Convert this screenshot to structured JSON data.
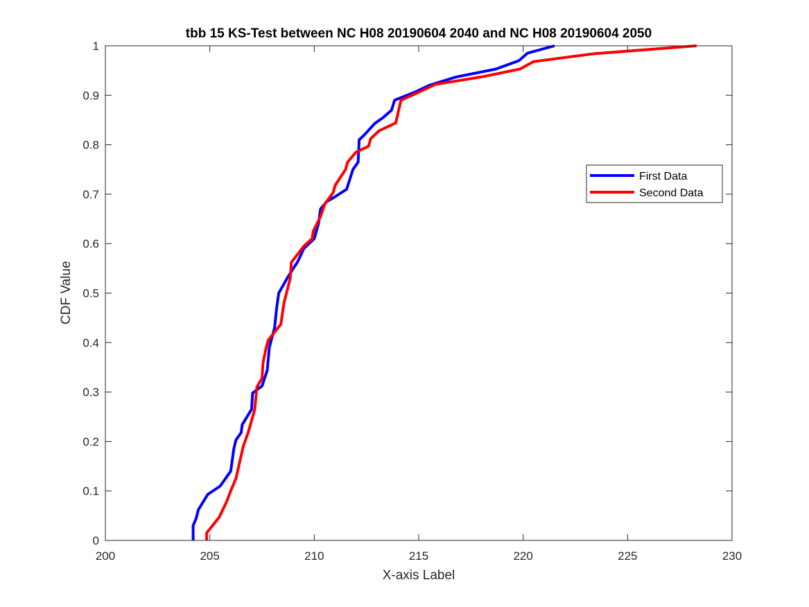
{
  "chart_data": {
    "type": "line",
    "title": "tbb 15 KS-Test between NC H08 20190604 2040 and NC H08 20190604 2050",
    "xlabel": "X-axis Label",
    "ylabel": "CDF Value",
    "xlim": [
      200,
      230
    ],
    "ylim": [
      0,
      1
    ],
    "xticks": [
      200,
      205,
      210,
      215,
      220,
      225,
      230
    ],
    "yticks": [
      0,
      0.1,
      0.2,
      0.3,
      0.4,
      0.5,
      0.6,
      0.7,
      0.8,
      0.9,
      1
    ],
    "x_tick_labels": [
      "200",
      "205",
      "210",
      "215",
      "220",
      "225",
      "230"
    ],
    "y_tick_labels": [
      "0",
      "0.1",
      "0.2",
      "0.3",
      "0.4",
      "0.5",
      "0.6",
      "0.7",
      "0.8",
      "0.9",
      "1"
    ],
    "grid": false,
    "legend_position": "right",
    "series": [
      {
        "name": "First Data",
        "color": "#0000ff",
        "points": [
          [
            204.2,
            0.0
          ],
          [
            204.2,
            0.03
          ],
          [
            204.35,
            0.045
          ],
          [
            204.45,
            0.062
          ],
          [
            204.9,
            0.093
          ],
          [
            205.5,
            0.11
          ],
          [
            206.0,
            0.14
          ],
          [
            206.15,
            0.185
          ],
          [
            206.25,
            0.203
          ],
          [
            206.5,
            0.218
          ],
          [
            206.55,
            0.234
          ],
          [
            207.0,
            0.265
          ],
          [
            207.05,
            0.298
          ],
          [
            207.5,
            0.312
          ],
          [
            207.75,
            0.344
          ],
          [
            207.85,
            0.39
          ],
          [
            208.1,
            0.43
          ],
          [
            208.2,
            0.47
          ],
          [
            208.3,
            0.5
          ],
          [
            208.7,
            0.53
          ],
          [
            209.0,
            0.55
          ],
          [
            209.2,
            0.563
          ],
          [
            209.5,
            0.59
          ],
          [
            210.0,
            0.61
          ],
          [
            210.2,
            0.64
          ],
          [
            210.3,
            0.67
          ],
          [
            210.6,
            0.685
          ],
          [
            211.0,
            0.695
          ],
          [
            211.55,
            0.71
          ],
          [
            211.7,
            0.73
          ],
          [
            211.85,
            0.75
          ],
          [
            212.1,
            0.765
          ],
          [
            212.15,
            0.81
          ],
          [
            212.4,
            0.82
          ],
          [
            212.9,
            0.843
          ],
          [
            213.3,
            0.855
          ],
          [
            213.7,
            0.87
          ],
          [
            213.85,
            0.89
          ],
          [
            214.8,
            0.906
          ],
          [
            215.5,
            0.92
          ],
          [
            216.8,
            0.937
          ],
          [
            218.7,
            0.953
          ],
          [
            219.8,
            0.97
          ],
          [
            220.2,
            0.985
          ],
          [
            221.5,
            1.0
          ]
        ]
      },
      {
        "name": "Second Data",
        "color": "#ff0000",
        "points": [
          [
            204.85,
            0.0
          ],
          [
            204.85,
            0.015
          ],
          [
            205.45,
            0.047
          ],
          [
            205.8,
            0.078
          ],
          [
            206.0,
            0.1
          ],
          [
            206.25,
            0.125
          ],
          [
            206.5,
            0.172
          ],
          [
            206.6,
            0.19
          ],
          [
            206.85,
            0.22
          ],
          [
            207.15,
            0.265
          ],
          [
            207.25,
            0.31
          ],
          [
            207.5,
            0.328
          ],
          [
            207.55,
            0.36
          ],
          [
            207.7,
            0.39
          ],
          [
            207.8,
            0.405
          ],
          [
            208.4,
            0.437
          ],
          [
            208.55,
            0.48
          ],
          [
            208.85,
            0.53
          ],
          [
            208.9,
            0.562
          ],
          [
            209.5,
            0.595
          ],
          [
            209.9,
            0.61
          ],
          [
            209.95,
            0.625
          ],
          [
            210.3,
            0.655
          ],
          [
            210.5,
            0.68
          ],
          [
            210.9,
            0.703
          ],
          [
            211.0,
            0.718
          ],
          [
            211.5,
            0.75
          ],
          [
            211.6,
            0.765
          ],
          [
            212.0,
            0.785
          ],
          [
            212.6,
            0.797
          ],
          [
            212.7,
            0.812
          ],
          [
            213.1,
            0.828
          ],
          [
            213.9,
            0.844
          ],
          [
            214.15,
            0.89
          ],
          [
            215.0,
            0.906
          ],
          [
            215.8,
            0.922
          ],
          [
            218.0,
            0.937
          ],
          [
            219.85,
            0.953
          ],
          [
            220.5,
            0.968
          ],
          [
            223.4,
            0.984
          ],
          [
            228.3,
            1.0
          ]
        ]
      }
    ]
  }
}
